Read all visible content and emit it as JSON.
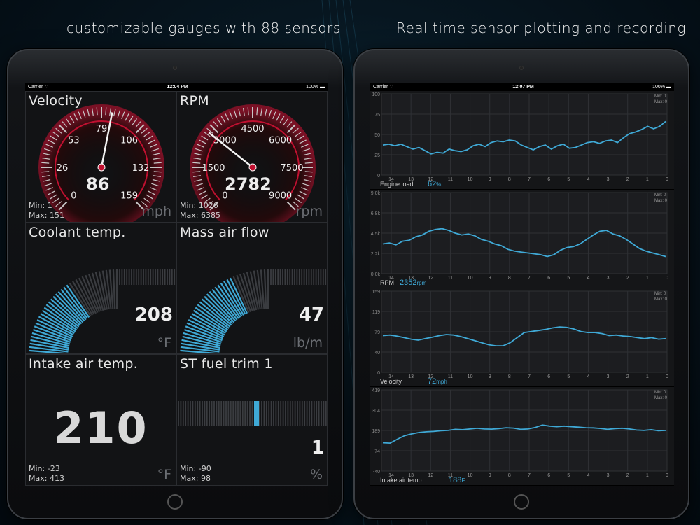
{
  "headlines": {
    "left": "customizable gauges with 88 sensors",
    "right": "Real time sensor plotting and recording"
  },
  "left_device": {
    "status": {
      "carrier": "Carrier",
      "time": "12:04 PM",
      "battery": "100%"
    },
    "tiles": {
      "velocity": {
        "title": "Velocity",
        "value": "86",
        "unit": "mph",
        "min": "Min: 1",
        "max": "Max: 151",
        "ticks": [
          "0",
          "26",
          "53",
          "79",
          "106",
          "132",
          "159"
        ],
        "fraction": 0.541
      },
      "rpm": {
        "title": "RPM",
        "value": "2782",
        "unit": "rpm",
        "min": "Min: 1026",
        "max": "Max: 6385",
        "ticks": [
          "0",
          "1500",
          "3000",
          "4500",
          "6000",
          "7500",
          "9000"
        ],
        "fraction": 0.309
      },
      "coolant": {
        "title": "Coolant temp.",
        "value": "208",
        "unit": "°F",
        "fraction": 0.36
      },
      "maf": {
        "title": "Mass air flow",
        "value": "47",
        "unit": "lb/m",
        "fraction": 0.42
      },
      "intake": {
        "title": "Intake air temp.",
        "value": "210",
        "unit": "°F",
        "min": "Min: -23",
        "max": "Max: 413"
      },
      "fuel_trim": {
        "title": "ST fuel trim  1",
        "value": "1",
        "unit": "%",
        "min": "Min: -90",
        "max": "Max: 98",
        "fraction": 0.5
      }
    }
  },
  "right_device": {
    "status": {
      "carrier": "Carrier",
      "time": "12:07 PM",
      "battery": "100%"
    },
    "x_ticks": [
      "14",
      "13",
      "12",
      "11",
      "10",
      "9",
      "8",
      "7",
      "6",
      "5",
      "4",
      "3",
      "2",
      "1",
      "0"
    ],
    "minmax": {
      "min": "Min: 0",
      "max": "Max: 0"
    },
    "plots": [
      {
        "label": "Engine load",
        "value": "62",
        "unit": "%",
        "y_ticks": [
          "100",
          "75",
          "50",
          "25",
          "0"
        ],
        "ylim": [
          0,
          100
        ],
        "values": [
          37,
          38,
          36,
          38,
          35,
          32,
          34,
          30,
          26,
          28,
          27,
          32,
          30,
          29,
          31,
          36,
          38,
          35,
          40,
          42,
          41,
          43,
          42,
          37,
          34,
          31,
          35,
          37,
          32,
          36,
          38,
          33,
          34,
          37,
          40,
          41,
          39,
          42,
          43,
          40,
          46,
          51,
          53,
          56,
          60,
          57,
          60,
          66
        ]
      },
      {
        "label": "RPM",
        "value": "2352",
        "unit": "rpm",
        "y_ticks": [
          "9.0k",
          "6.8k",
          "4.5k",
          "2.2k",
          "0.0k"
        ],
        "ylim": [
          0,
          9000
        ],
        "values": [
          3300,
          3400,
          3200,
          3600,
          3700,
          4100,
          4300,
          4700,
          4900,
          5000,
          4800,
          4500,
          4300,
          4400,
          4200,
          3800,
          3600,
          3300,
          3100,
          2700,
          2500,
          2400,
          2300,
          2200,
          2100,
          1900,
          2100,
          2600,
          2900,
          3000,
          3300,
          3800,
          4300,
          4700,
          4800,
          4400,
          4200,
          3800,
          3300,
          2800,
          2500,
          2300,
          2100,
          1900
        ]
      },
      {
        "label": "Velocity",
        "value": "72",
        "unit": "mph",
        "y_ticks": [
          "159",
          "119",
          "79",
          "40",
          "0"
        ],
        "ylim": [
          0,
          159
        ],
        "values": [
          72,
          73,
          71,
          68,
          65,
          63,
          66,
          69,
          72,
          74,
          73,
          70,
          66,
          62,
          58,
          54,
          52,
          52,
          58,
          68,
          78,
          80,
          82,
          84,
          87,
          89,
          88,
          85,
          80,
          78,
          78,
          76,
          72,
          73,
          71,
          70,
          68,
          66,
          68,
          65,
          66
        ]
      },
      {
        "label": "Intake air temp.",
        "value": "188",
        "unit": "F",
        "y_ticks": [
          "419",
          "304",
          "189",
          "74",
          "-40"
        ],
        "ylim": [
          -40,
          419
        ],
        "values": [
          120,
          118,
          140,
          160,
          170,
          178,
          182,
          184,
          188,
          190,
          196,
          194,
          198,
          202,
          198,
          197,
          200,
          205,
          203,
          196,
          198,
          206,
          220,
          214,
          211,
          214,
          211,
          208,
          205,
          204,
          201,
          196,
          200,
          202,
          198,
          192,
          190,
          194,
          188,
          190
        ]
      }
    ]
  },
  "colors": {
    "accent": "#3fa9d6",
    "gauge_red": "#c01030",
    "tile_bg": "#121315"
  }
}
